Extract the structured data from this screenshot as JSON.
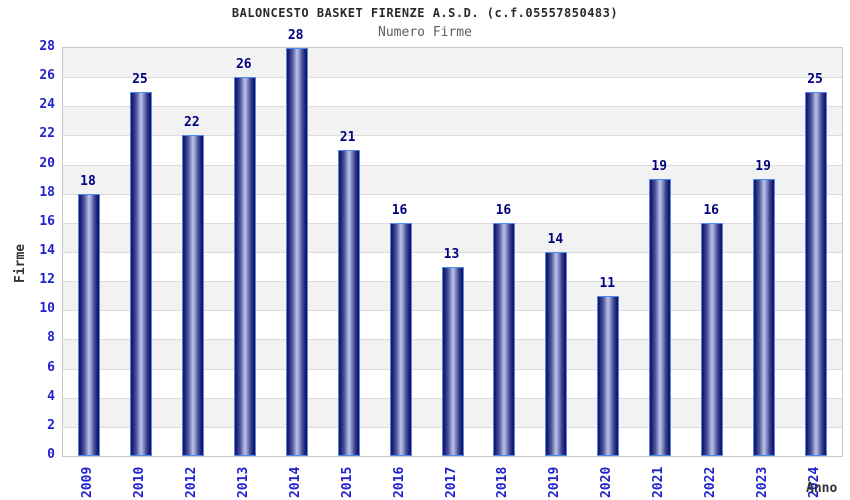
{
  "chart_data": {
    "type": "bar",
    "title": "BALONCESTO BASKET FIRENZE A.S.D. (c.f.05557850483)",
    "subtitle": "Numero Firme",
    "xlabel": "Anno",
    "ylabel": "Firme",
    "categories": [
      "2009",
      "2010",
      "2012",
      "2013",
      "2014",
      "2015",
      "2016",
      "2017",
      "2018",
      "2019",
      "2020",
      "2021",
      "2022",
      "2023",
      "2024"
    ],
    "values": [
      18,
      25,
      22,
      26,
      28,
      21,
      16,
      13,
      16,
      14,
      11,
      19,
      16,
      19,
      25
    ],
    "ylim": [
      0,
      28
    ],
    "ytick_step": 2,
    "grid": "horizontal alternating bands every 2 units, gray/white, light gray gridlines",
    "legend": "none",
    "colors": {
      "tick_label": "#2121ce",
      "value_label": "#000080",
      "bar_border": "#4d8af0",
      "bar_dark": "#14145a",
      "bar_highlight": "#b6bfe4",
      "band_gray": "#f2f2f2",
      "band_white": "#ffffff",
      "gridline": "#dcdcdc",
      "title_color": "#2a2a2a",
      "subtitle_color": "#5f5f5f",
      "axis_title_color": "#333333"
    }
  }
}
